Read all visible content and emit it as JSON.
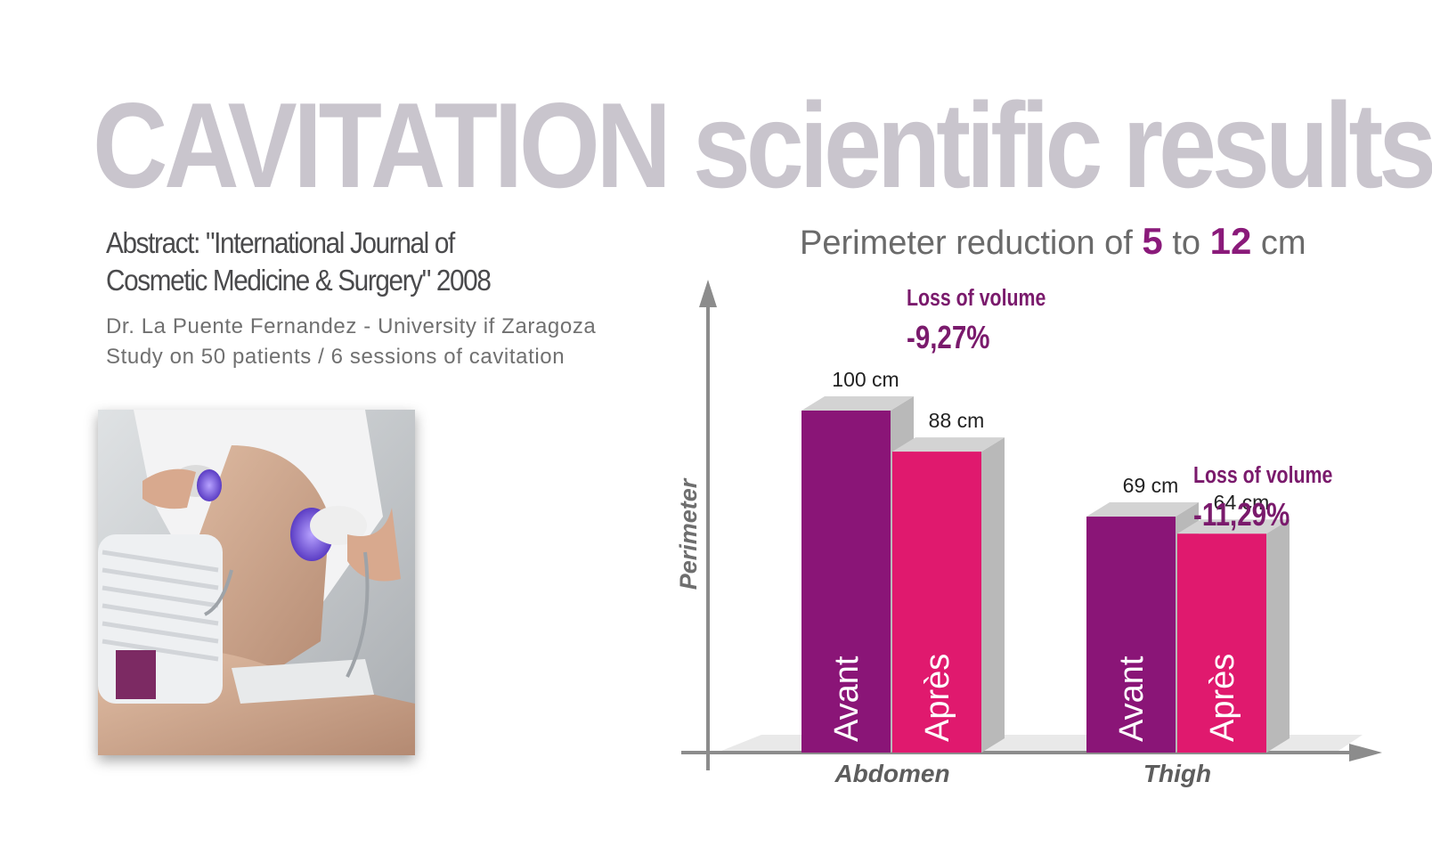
{
  "title": {
    "part1": "CAVITATION",
    "part2": "scientific results"
  },
  "abstract": {
    "line1": "Abstract: \"International Journal of",
    "line2": "Cosmetic Medicine & Surgery\" 2008"
  },
  "authors": {
    "line1": "Dr. La Puente Fernandez - University if Zaragoza",
    "line2": "Study on 50 patients / 6 sessions of cavitation"
  },
  "chart_title": {
    "prefix": "Perimeter reduction of",
    "low": "5",
    "mid": "to",
    "high": "12",
    "unit": "cm"
  },
  "chart_data": {
    "type": "bar",
    "title": "Perimeter reduction of 5 to 12 cm",
    "ylabel": "Perimeter",
    "xlabel": "",
    "categories": [
      "Abdomen",
      "Thigh"
    ],
    "series": [
      {
        "name": "Avant",
        "values": [
          100,
          69
        ]
      },
      {
        "name": "Après",
        "values": [
          88,
          64
        ]
      }
    ],
    "value_labels": [
      [
        "100 cm",
        "88 cm"
      ],
      [
        "69 cm",
        "64 cm"
      ]
    ],
    "annotations": [
      {
        "category": "Abdomen",
        "label": "Loss of volume",
        "value": "-9,27%"
      },
      {
        "category": "Thigh",
        "label": "Loss of volume",
        "value": "-11,29%"
      }
    ],
    "ylim": [
      0,
      130
    ],
    "grid": false,
    "legend": "none",
    "colors": {
      "Avant": "#8a1577",
      "Après": "#e0196e",
      "side": "#b9b9b9",
      "top": "#d3d3d3",
      "axis": "#8c8c8c",
      "loss_text": "#7a1a6c"
    }
  },
  "photo": {
    "icon": "cavitation-treatment-photo"
  }
}
